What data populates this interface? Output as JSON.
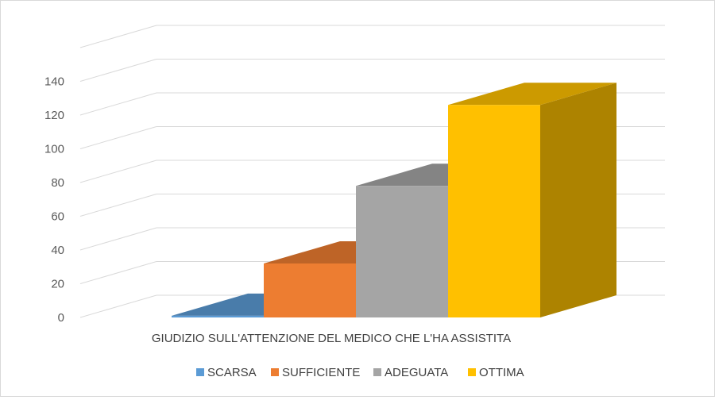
{
  "chart_data": {
    "type": "bar",
    "style": "3d-column",
    "categories": [
      "GIUDIZIO SULL'ATTENZIONE DEL MEDICO CHE L'HA ASSISTITA"
    ],
    "series": [
      {
        "name": "SCARSA",
        "values": [
          1
        ],
        "color": "#5B9BD5"
      },
      {
        "name": "SUFFICIENTE",
        "values": [
          32
        ],
        "color": "#ED7D31"
      },
      {
        "name": "ADEGUATA",
        "values": [
          78
        ],
        "color": "#A5A5A5"
      },
      {
        "name": "OTTIMA",
        "values": [
          126
        ],
        "color": "#FFC000"
      }
    ],
    "yticks": [
      "0",
      "20",
      "40",
      "60",
      "80",
      "100",
      "120",
      "140"
    ],
    "ylim": [
      0,
      160
    ],
    "grid": true,
    "legend_position": "bottom",
    "title": "",
    "xlabel": "",
    "ylabel": ""
  }
}
